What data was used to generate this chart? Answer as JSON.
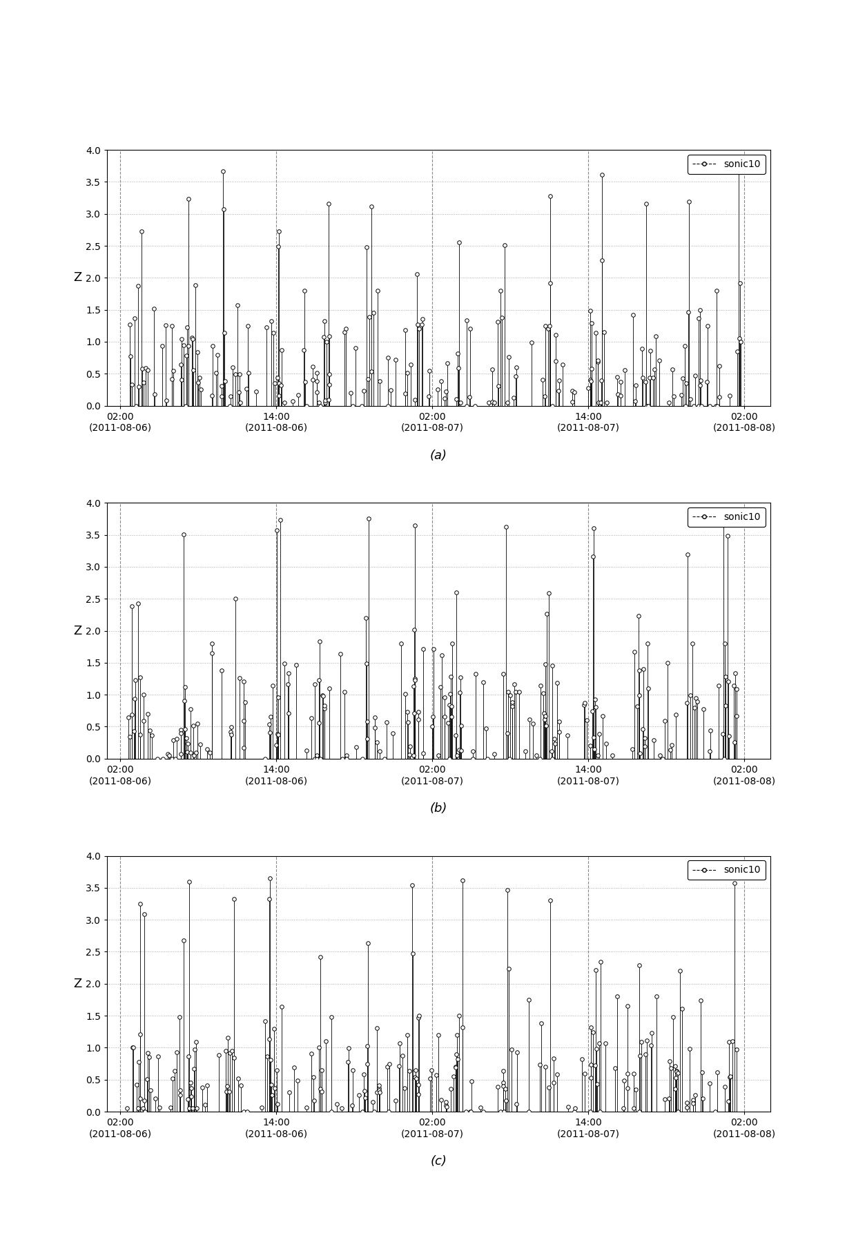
{
  "subplots": [
    "(a)",
    "(b)",
    "(c)"
  ],
  "ylabel": "Z",
  "ylim": [
    0,
    4.0
  ],
  "yticks": [
    0.0,
    0.5,
    1.0,
    1.5,
    2.0,
    2.5,
    3.0,
    3.5,
    4.0
  ],
  "legend_label": "sonic10",
  "line_color": "black",
  "marker": "o",
  "markersize": 4,
  "markerface": "white",
  "tick_positions": [
    0,
    12,
    24,
    36,
    48
  ],
  "tick_labels": [
    "02:00\n(2011-08-06)",
    "14:00\n(2011-08-06)",
    "02:00\n(2011-08-07)",
    "14:00\n(2011-08-07)",
    "02:00\n(2011-08-08)"
  ],
  "vline_positions": [
    0,
    12,
    24,
    36,
    48
  ],
  "background_color": "white",
  "grid_color": "#aaaaaa",
  "font_size_label": 13,
  "font_size_tick": 10,
  "font_size_sub": 13,
  "xlim": [
    -1,
    50
  ]
}
